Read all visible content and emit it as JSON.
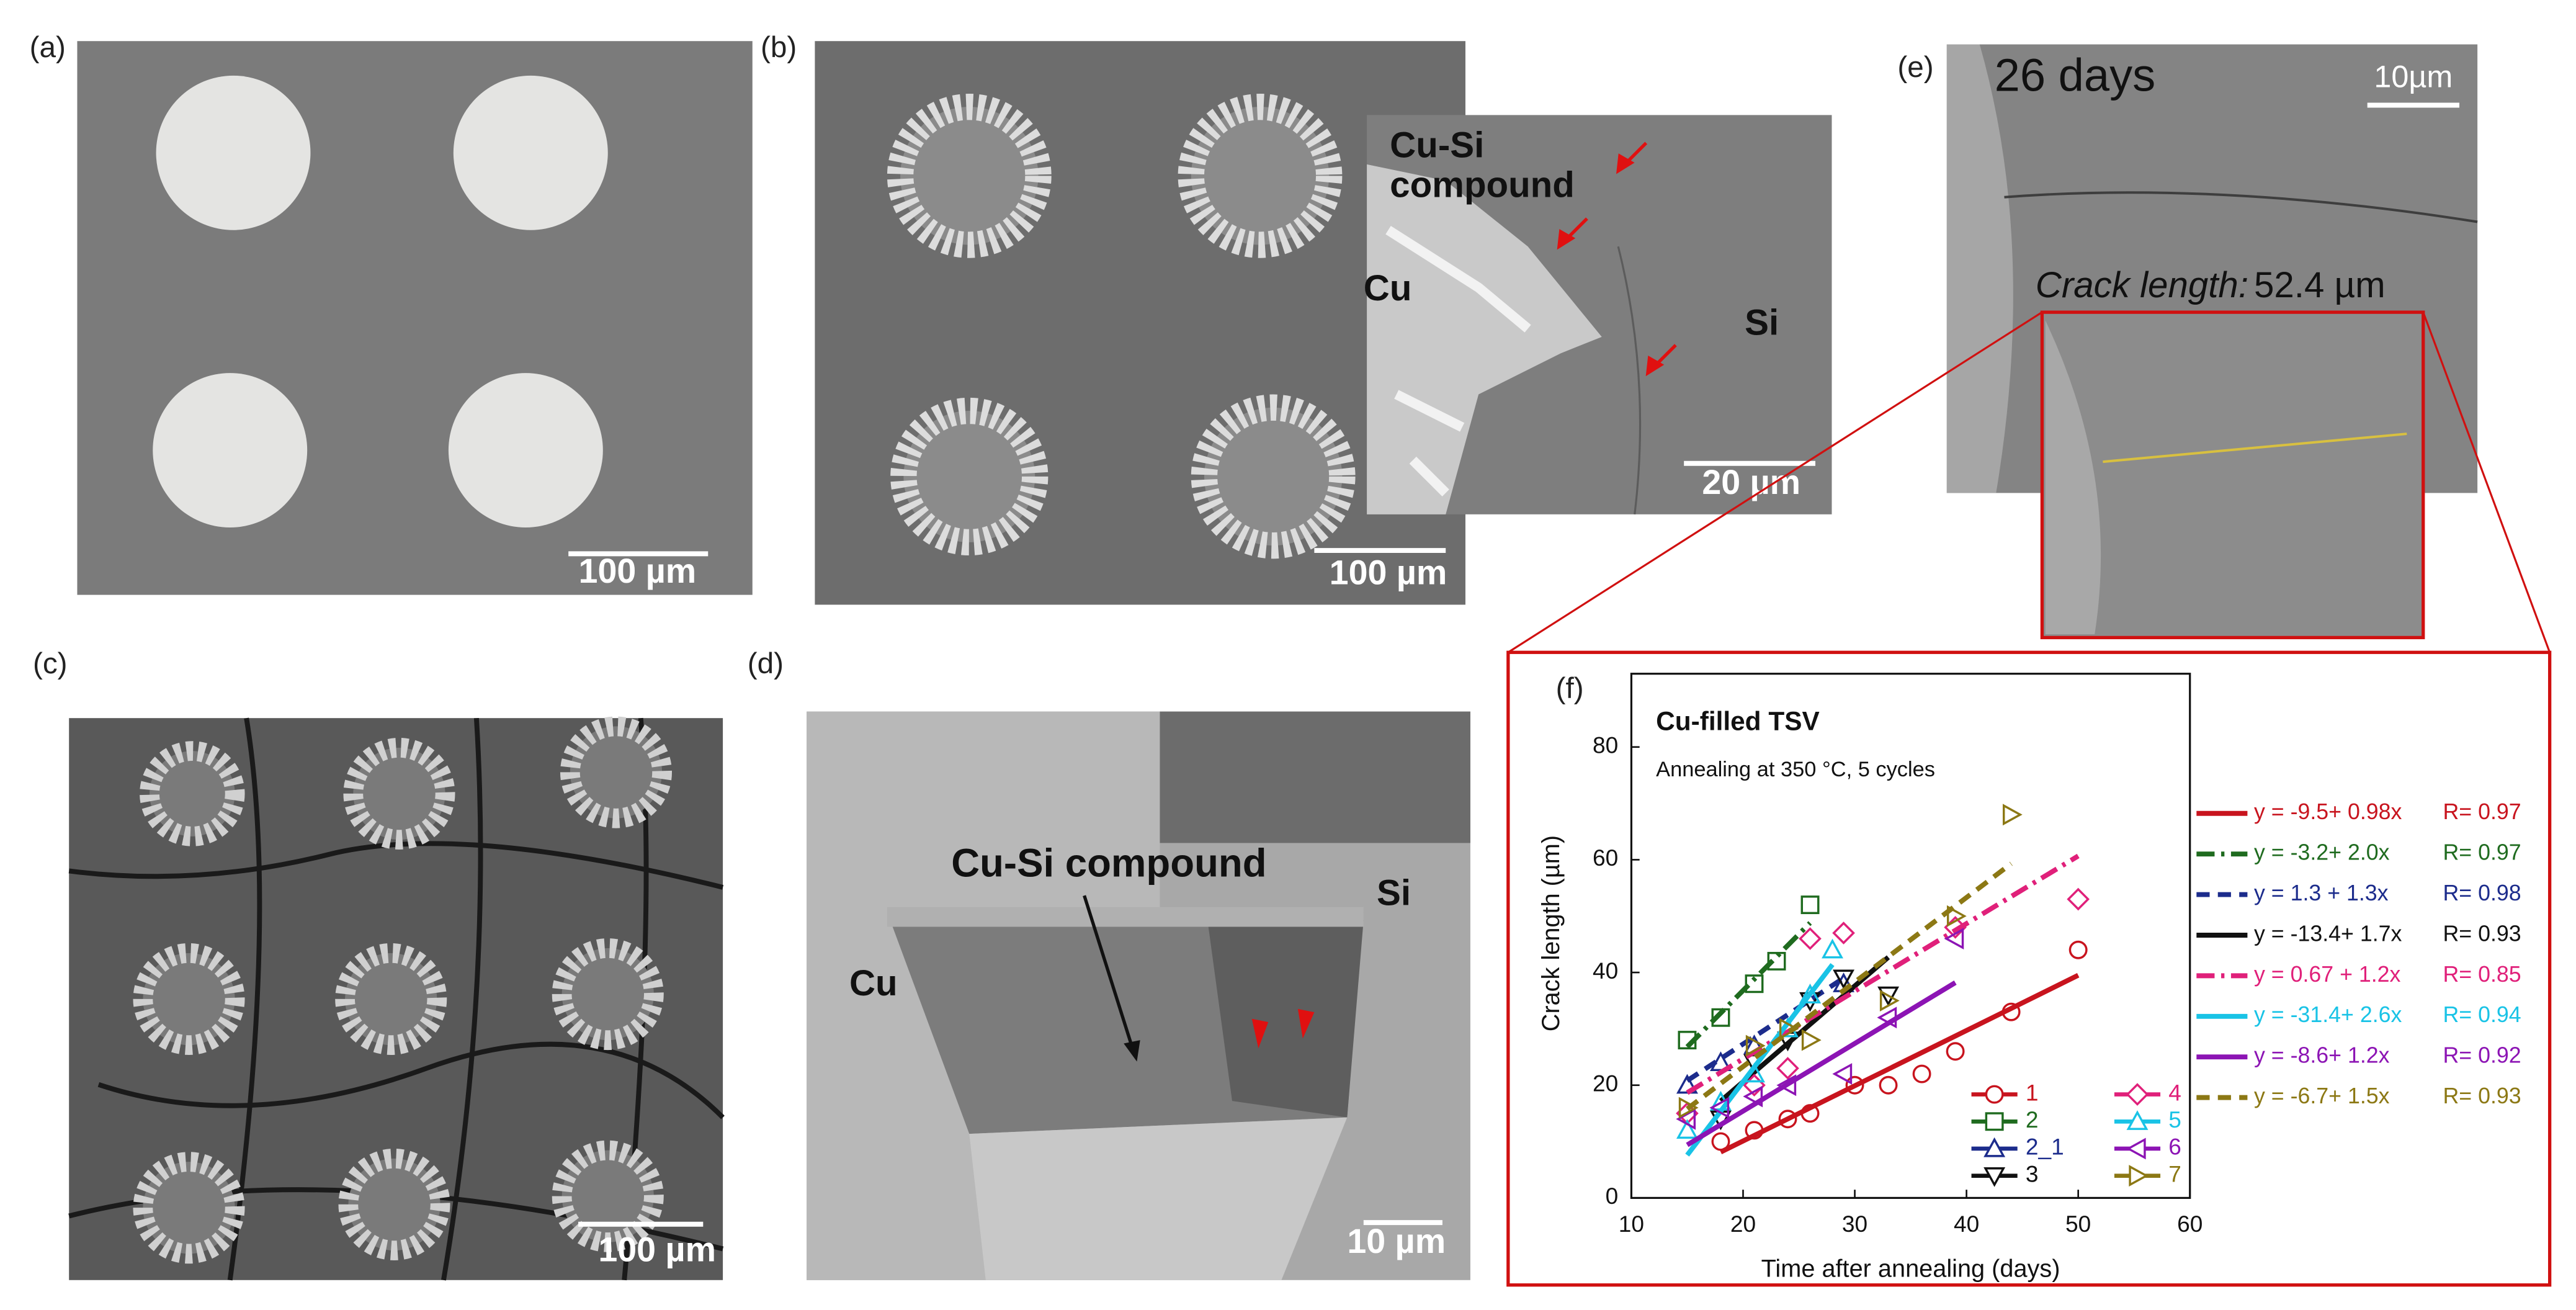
{
  "panels": {
    "a": {
      "label": "(a)",
      "scale_bar": "100 µm"
    },
    "b": {
      "label": "(b)",
      "scale_bar": "100 µm",
      "inset_compound_1": "Cu-Si",
      "inset_compound_2": "compound",
      "inset_cu": "Cu",
      "inset_si": "Si",
      "inset_scale_bar": "20 µm"
    },
    "c": {
      "label": "(c)",
      "scale_bar": "100 µm"
    },
    "d": {
      "label": "(d)",
      "compound": "Cu-Si compound",
      "cu": "Cu",
      "si": "Si",
      "scale_bar": "10 µm"
    },
    "e": {
      "label": "(e)",
      "days": "26 days",
      "scale_bar": "10µm",
      "crack_label": "Crack length:",
      "crack_value": "52.4 µm"
    },
    "f": {
      "label": "(f)"
    }
  },
  "chart_data": {
    "type": "scatter",
    "title": "Cu-filled TSV",
    "subtitle": "Annealing at 350 °C, 5 cycles",
    "x_label": "Time after annealing (days)",
    "y_label": "Crack length (µm)",
    "xlim": [
      10,
      60
    ],
    "xticks": [
      10,
      20,
      30,
      40,
      50,
      60
    ],
    "ylim": [
      0,
      93
    ],
    "yticks": [
      0,
      20,
      40,
      60,
      80
    ],
    "series": [
      {
        "name": "1",
        "color": "#c8141e",
        "marker": "circle",
        "line_style": "solid",
        "x": [
          18,
          21,
          24,
          26,
          30,
          33,
          36,
          39,
          44,
          50
        ],
        "values": [
          10,
          12,
          14,
          15,
          20,
          20,
          22,
          26,
          33,
          44
        ],
        "fit": [
          -9.5,
          0.98
        ],
        "equation": "y = -9.5+ 0.98x",
        "r_label": "R= 0.97"
      },
      {
        "name": "2",
        "color": "#1f6b1f",
        "marker": "square",
        "line_style": "dashdot",
        "x": [
          15,
          18,
          21,
          23,
          26
        ],
        "values": [
          28,
          32,
          38,
          42,
          52
        ],
        "fit": [
          -3.2,
          2.0
        ],
        "equation": "y = -3.2+ 2.0x",
        "r_label": "R= 0.97"
      },
      {
        "name": "2_1",
        "color": "#1c2c8c",
        "marker": "triangle-up",
        "line_style": "dashed",
        "x": [
          15,
          18,
          21,
          24,
          26,
          29
        ],
        "values": [
          20,
          24,
          27,
          30,
          36,
          38
        ],
        "fit": [
          1.3,
          1.3
        ],
        "equation": "y = 1.3 + 1.3x",
        "r_label": "R= 0.98"
      },
      {
        "name": "3",
        "color": "#111111",
        "marker": "triangle-down",
        "line_style": "solid",
        "x": [
          18,
          21,
          24,
          26,
          29,
          33
        ],
        "values": [
          14,
          24,
          28,
          35,
          39,
          36
        ],
        "fit": [
          -13.4,
          1.7
        ],
        "equation": "y = -13.4+ 1.7x",
        "r_label": "R= 0.93"
      },
      {
        "name": "4",
        "color": "#e0207a",
        "marker": "diamond",
        "line_style": "dashdot",
        "x": [
          15,
          21,
          24,
          26,
          29,
          39,
          50
        ],
        "values": [
          15,
          20,
          23,
          46,
          47,
          48,
          53
        ],
        "fit": [
          0.67,
          1.2
        ],
        "equation": "y = 0.67 + 1.2x",
        "r_label": "R= 0.85"
      },
      {
        "name": "5",
        "color": "#19c3e6",
        "marker": "triangle-up",
        "line_style": "solid",
        "x": [
          15,
          18,
          21,
          24,
          26,
          28
        ],
        "values": [
          12,
          17,
          22,
          30,
          36,
          44
        ],
        "fit": [
          -31.4,
          2.6
        ],
        "equation": "y = -31.4+ 2.6x",
        "r_label": "R= 0.94"
      },
      {
        "name": "6",
        "color": "#8c14b4",
        "marker": "triangle-left",
        "line_style": "solid",
        "x": [
          15,
          18,
          21,
          24,
          29,
          33,
          39
        ],
        "values": [
          14,
          16,
          18,
          20,
          22,
          32,
          46
        ],
        "fit": [
          -8.6,
          1.2
        ],
        "equation": "y = -8.6+ 1.2x",
        "r_label": "R= 0.92"
      },
      {
        "name": "7",
        "color": "#8c7814",
        "marker": "triangle-right",
        "line_style": "dashed",
        "x": [
          15,
          21,
          24,
          26,
          33,
          39,
          44
        ],
        "values": [
          16,
          27,
          30,
          28,
          35,
          50,
          68
        ],
        "fit": [
          -6.7,
          1.5
        ],
        "equation": "y = -6.7+ 1.5x",
        "r_label": "R= 0.93"
      }
    ]
  }
}
